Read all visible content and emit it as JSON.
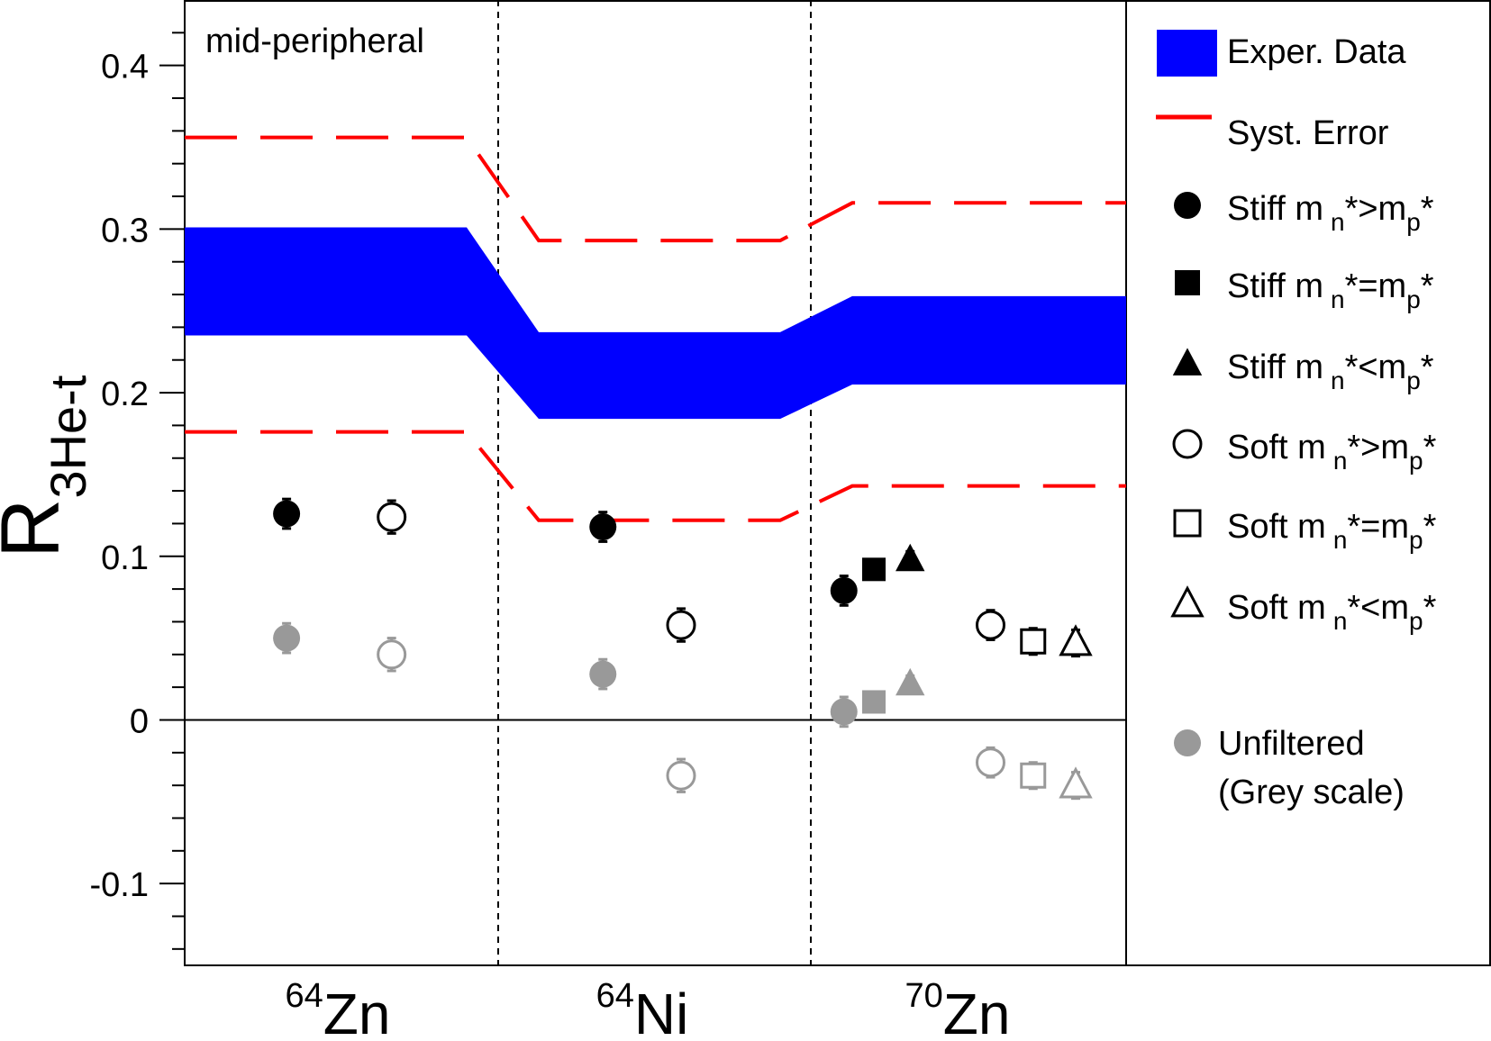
{
  "chart_data": {
    "type": "scatter",
    "annotation": "mid-peripheral",
    "ylabel": {
      "main": "R",
      "sub": "3He-t"
    },
    "ylim": [
      -0.15,
      0.44
    ],
    "yticks": [
      {
        "value": -0.1,
        "label": "-0.1"
      },
      {
        "value": 0,
        "label": "0"
      },
      {
        "value": 0.1,
        "label": "0.1"
      },
      {
        "value": 0.2,
        "label": "0.2"
      },
      {
        "value": 0.3,
        "label": "0.3"
      },
      {
        "value": 0.4,
        "label": "0.4"
      }
    ],
    "systems": [
      {
        "sup": "64",
        "name": "Zn"
      },
      {
        "sup": "64",
        "name": "Ni"
      },
      {
        "sup": "70",
        "name": "Zn"
      }
    ],
    "exper_data_band": [
      {
        "system": "64Zn",
        "lower": 0.235,
        "upper": 0.301
      },
      {
        "system": "64Ni",
        "lower": 0.184,
        "upper": 0.237
      },
      {
        "system": "70Zn",
        "lower": 0.205,
        "upper": 0.259
      }
    ],
    "syst_error": [
      {
        "system": "64Zn",
        "lower": 0.176,
        "upper": 0.356
      },
      {
        "system": "64Ni",
        "lower": 0.122,
        "upper": 0.293
      },
      {
        "system": "70Zn",
        "lower": 0.143,
        "upper": 0.316
      }
    ],
    "series": [
      {
        "name": "Stiff m_n*>m_p*",
        "marker": "circle",
        "filled": true,
        "color": "#000000",
        "points": [
          {
            "system": "64Zn",
            "y": 0.126,
            "err": 0.009
          },
          {
            "system": "64Ni",
            "y": 0.118,
            "err": 0.009
          },
          {
            "system": "70Zn",
            "y": 0.079,
            "err": 0.009
          }
        ]
      },
      {
        "name": "Stiff m_n*=m_p*",
        "marker": "square",
        "filled": true,
        "color": "#000000",
        "points": [
          {
            "system": "70Zn",
            "y": 0.092,
            "err": 0.004
          }
        ]
      },
      {
        "name": "Stiff m_n*<m_p*",
        "marker": "triangle",
        "filled": true,
        "color": "#000000",
        "points": [
          {
            "system": "70Zn",
            "y": 0.098,
            "err": 0.005
          }
        ]
      },
      {
        "name": "Soft m_n*>m_p*",
        "marker": "circle",
        "filled": false,
        "color": "#000000",
        "points": [
          {
            "system": "64Zn",
            "y": 0.124,
            "err": 0.01
          },
          {
            "system": "64Ni",
            "y": 0.058,
            "err": 0.01
          },
          {
            "system": "70Zn",
            "y": 0.058,
            "err": 0.009
          }
        ]
      },
      {
        "name": "Soft m_n*=m_p*",
        "marker": "square",
        "filled": false,
        "color": "#000000",
        "points": [
          {
            "system": "70Zn",
            "y": 0.048,
            "err": 0.008
          }
        ]
      },
      {
        "name": "Soft m_n*<m_p*",
        "marker": "triangle",
        "filled": false,
        "color": "#000000",
        "points": [
          {
            "system": "70Zn",
            "y": 0.047,
            "err": 0.008
          }
        ]
      },
      {
        "name": "Unfiltered Stiff m_n*>m_p*",
        "marker": "circle",
        "filled": true,
        "color": "#999999",
        "points": [
          {
            "system": "64Zn",
            "y": 0.05,
            "err": 0.009
          },
          {
            "system": "64Ni",
            "y": 0.028,
            "err": 0.009
          },
          {
            "system": "70Zn",
            "y": 0.005,
            "err": 0.009
          }
        ]
      },
      {
        "name": "Unfiltered Stiff m_n*=m_p*",
        "marker": "square",
        "filled": true,
        "color": "#999999",
        "points": [
          {
            "system": "70Zn",
            "y": 0.011,
            "err": 0.004
          }
        ]
      },
      {
        "name": "Unfiltered Stiff m_n*<m_p*",
        "marker": "triangle",
        "filled": true,
        "color": "#999999",
        "points": [
          {
            "system": "70Zn",
            "y": 0.022,
            "err": 0.005
          }
        ]
      },
      {
        "name": "Unfiltered Soft m_n*>m_p*",
        "marker": "circle",
        "filled": false,
        "color": "#999999",
        "points": [
          {
            "system": "64Zn",
            "y": 0.04,
            "err": 0.01
          },
          {
            "system": "64Ni",
            "y": -0.034,
            "err": 0.01
          },
          {
            "system": "70Zn",
            "y": -0.026,
            "err": 0.009
          }
        ]
      },
      {
        "name": "Unfiltered Soft m_n*=m_p*",
        "marker": "square",
        "filled": false,
        "color": "#999999",
        "points": [
          {
            "system": "70Zn",
            "y": -0.034,
            "err": 0.008
          }
        ]
      },
      {
        "name": "Unfiltered Soft m_n*<m_p*",
        "marker": "triangle",
        "filled": false,
        "color": "#999999",
        "points": [
          {
            "system": "70Zn",
            "y": -0.04,
            "err": 0.008
          }
        ]
      }
    ],
    "legend": {
      "placement": "right",
      "entries": [
        {
          "kind": "band",
          "label": "Exper. Data",
          "color": "#0000ff"
        },
        {
          "kind": "line",
          "label": "Syst. Error",
          "color": "#ff0000"
        },
        {
          "kind": "marker",
          "marker": "circle",
          "filled": true,
          "color": "#000000",
          "pre": "Stiff m",
          "sub1": "n",
          "mid": "*>m",
          "sub2": "p",
          "post": "*"
        },
        {
          "kind": "marker",
          "marker": "square",
          "filled": true,
          "color": "#000000",
          "pre": "Stiff m",
          "sub1": "n",
          "mid": "*=m",
          "sub2": "p",
          "post": "*"
        },
        {
          "kind": "marker",
          "marker": "triangle",
          "filled": true,
          "color": "#000000",
          "pre": "Stiff m",
          "sub1": "n",
          "mid": "*<m",
          "sub2": "p",
          "post": "*"
        },
        {
          "kind": "marker",
          "marker": "circle",
          "filled": false,
          "color": "#000000",
          "pre": "Soft m",
          "sub1": "n",
          "mid": "*>m",
          "sub2": "p",
          "post": "*"
        },
        {
          "kind": "marker",
          "marker": "square",
          "filled": false,
          "color": "#000000",
          "pre": "Soft m",
          "sub1": "n",
          "mid": "*=m",
          "sub2": "p",
          "post": "*"
        },
        {
          "kind": "marker",
          "marker": "triangle",
          "filled": false,
          "color": "#000000",
          "pre": "Soft m",
          "sub1": "n",
          "mid": "*<m",
          "sub2": "p",
          "post": "*"
        },
        {
          "kind": "unfiltered",
          "marker": "circle",
          "filled": true,
          "color": "#999999",
          "line1": "Unfiltered",
          "line2": "(Grey scale)"
        }
      ]
    },
    "colors": {
      "band": "#0000ff",
      "syst": "#ff0000",
      "filter": "#000000",
      "unfiltered": "#999999"
    }
  }
}
